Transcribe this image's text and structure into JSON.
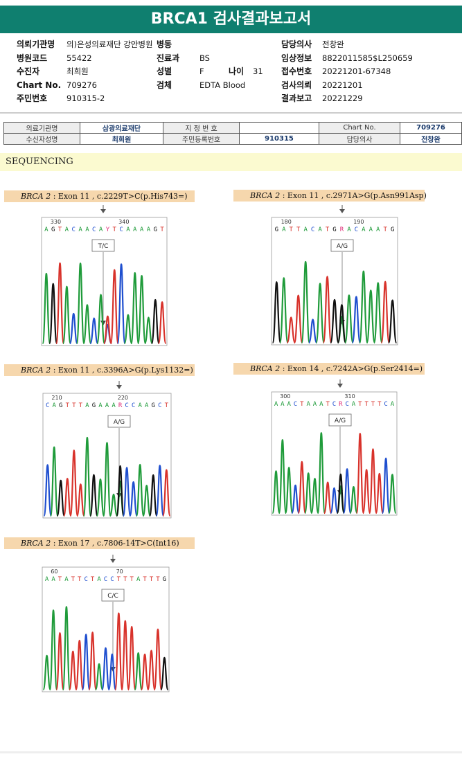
{
  "title": "BRCA1 검사결과보고서",
  "header": {
    "rows": [
      [
        {
          "label": "의뢰기관명",
          "value": "의)은성의료재단 강안병원"
        },
        {
          "label": "병동",
          "value": ""
        },
        {
          "label": "",
          "value": ""
        },
        {
          "label": "담당의사",
          "value": "전창완"
        }
      ],
      [
        {
          "label": "병원코드",
          "value": "55422"
        },
        {
          "label": "진료과",
          "value": "BS"
        },
        {
          "label": "",
          "value": ""
        },
        {
          "label": "임상정보",
          "value": "8822011585$L250659"
        }
      ],
      [
        {
          "label": "수진자",
          "value": "최희원"
        },
        {
          "label": "성별",
          "value": "F"
        },
        {
          "label": "나이",
          "value": "31"
        },
        {
          "label": "접수번호",
          "value": "20221201-67348"
        }
      ],
      [
        {
          "label": "Chart No.",
          "value": "709276"
        },
        {
          "label": "검체",
          "value": "EDTA Blood"
        },
        {
          "label": "",
          "value": ""
        },
        {
          "label": "검사의뢰",
          "value": "20221201"
        }
      ],
      [
        {
          "label": "주민번호",
          "value": "910315-2"
        },
        {
          "label": "",
          "value": ""
        },
        {
          "label": "",
          "value": ""
        },
        {
          "label": "결과보고",
          "value": "20221229"
        }
      ]
    ]
  },
  "table2": {
    "r1": [
      "의료기관명",
      "삼광의료재단",
      "지 정 번 호",
      "",
      "Chart No.",
      "709276"
    ],
    "r2": [
      "수신자성명",
      "최희원",
      "주민등록번호",
      "910315",
      "담당의사",
      "전창완"
    ]
  },
  "section": "SEQUENCING",
  "variants": [
    {
      "gene": "BRCA 2",
      "desc": " : Exon 11 , c.2229T>C(p.His743=)",
      "pos1": "330",
      "pos2": "340",
      "seq": "AGTACAACAYTCAAAAGT",
      "call": "T/C"
    },
    {
      "gene": "BRCA 2",
      "desc": " : Exon 11 , c.2971A>G(p.Asn991Asp)",
      "pos1": "180",
      "pos2": "190",
      "seq": "GATTACATGRACAAATG",
      "call": "A/G"
    },
    {
      "gene": "BRCA 2",
      "desc": " : Exon 11 , c.3396A>G(p.Lys1132=)",
      "pos1": "210",
      "pos2": "220",
      "seq": "CAGTTTAGAAARCCAAGCT",
      "call": "A/G"
    },
    {
      "gene": "BRCA 2",
      "desc": " : Exon 14 , c.7242A>G(p.Ser2414=)",
      "pos1": "300",
      "pos2": "310",
      "seq": "AAACTAAATCRCATTTTCA",
      "call": "A/G"
    },
    {
      "gene": "BRCA 2",
      "desc": " : Exon 17 , c.7806-14T>C(Int16)",
      "pos1": "60",
      "pos2": "70",
      "seq": "AATATTCTACCTTTATTTG",
      "call": "C/C"
    }
  ],
  "colors": {
    "A": "#1f9b3a",
    "C": "#1f4fcf",
    "G": "#111111",
    "T": "#d8322b",
    "R": "#e0307a",
    "Y": "#e0307a",
    "title": "#0f7f6f",
    "tag": "#f6d7ad"
  }
}
